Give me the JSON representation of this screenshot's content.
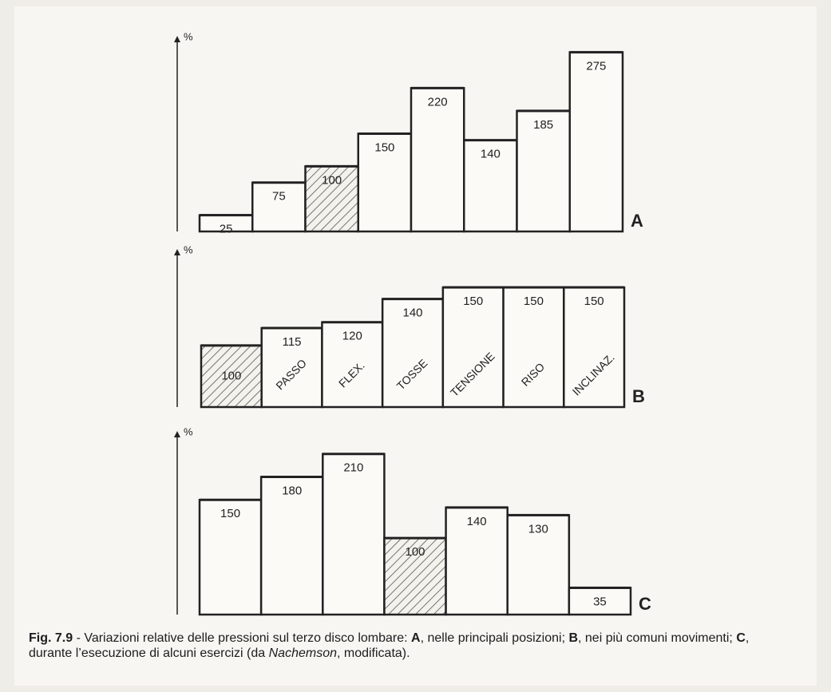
{
  "chart_data": [
    {
      "type": "bar",
      "label": "A",
      "y_label": "%",
      "values": [
        25,
        75,
        100,
        150,
        220,
        140,
        185,
        275
      ],
      "color": "#fbfaf6",
      "highlight_index": 2,
      "ylim": [
        0,
        300
      ]
    },
    {
      "type": "bar",
      "label": "B",
      "y_label": "%",
      "categories": [
        null,
        "PASSO",
        "FLEX.",
        "TOSSE",
        "TENSIONE",
        "RISO",
        "INCLINAZ."
      ],
      "values": [
        100,
        115,
        120,
        140,
        150,
        150,
        150
      ],
      "color": "#fbfaf6",
      "highlight_index": 0,
      "ylim": [
        47,
        183
      ]
    },
    {
      "type": "bar",
      "label": "C",
      "y_label": "%",
      "values": [
        150,
        180,
        210,
        100,
        140,
        130,
        35
      ],
      "color": "#fbfaf6",
      "highlight_index": 3,
      "ylim": [
        0,
        240
      ]
    }
  ],
  "caption": [
    "Fig. 7.9",
    " - Variazioni relative delle pressioni sul terzo disco lombare: ",
    "A",
    ", nelle principali posizioni; ",
    "B",
    ", nei più comuni movimenti; ",
    "C",
    ", durante l’esecuzione di alcuni esercizi (da ",
    "Nachemson",
    ", modificata)."
  ]
}
